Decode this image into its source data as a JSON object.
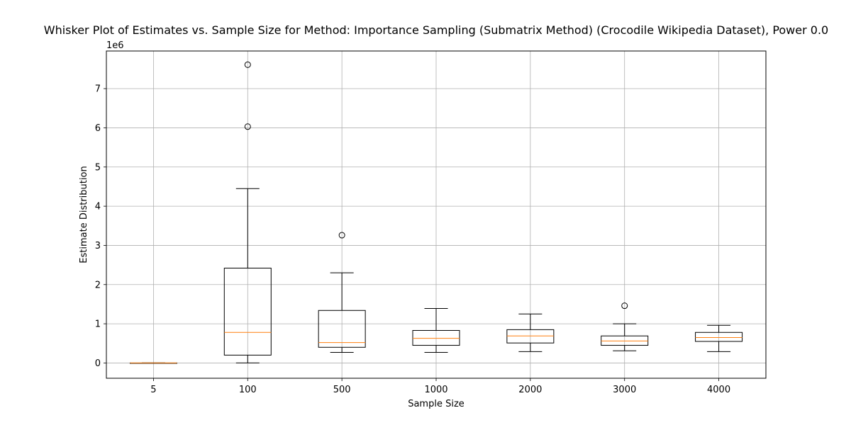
{
  "chart_data": {
    "type": "box",
    "title": "Whisker Plot of Estimates vs. Sample Size for Method: Importance Sampling (Submatrix Method) (Crocodile Wikipedia Dataset), Power 0.0",
    "xlabel": "Sample Size",
    "ylabel": "Estimate Distribution",
    "y_offset_label": "1e6",
    "y_scale_factor": 1000000,
    "ylim": [
      -390000,
      7960000
    ],
    "yticks": [
      0,
      1000000,
      2000000,
      3000000,
      4000000,
      5000000,
      6000000,
      7000000
    ],
    "ytick_labels": [
      "0",
      "1",
      "2",
      "3",
      "4",
      "5",
      "6",
      "7"
    ],
    "grid": true,
    "categories": [
      "5",
      "100",
      "500",
      "1000",
      "2000",
      "3000",
      "4000"
    ],
    "boxes": [
      {
        "category": "5",
        "whisker_low": 0,
        "q1": 0,
        "median": 0,
        "q3": 0,
        "whisker_high": 0,
        "outliers": []
      },
      {
        "category": "100",
        "whisker_low": 0,
        "q1": 200000,
        "median": 780000,
        "q3": 2420000,
        "whisker_high": 4450000,
        "outliers": [
          6030000,
          7610000
        ]
      },
      {
        "category": "500",
        "whisker_low": 270000,
        "q1": 400000,
        "median": 520000,
        "q3": 1340000,
        "whisker_high": 2300000,
        "outliers": [
          3260000
        ]
      },
      {
        "category": "1000",
        "whisker_low": 270000,
        "q1": 450000,
        "median": 630000,
        "q3": 830000,
        "whisker_high": 1390000,
        "outliers": []
      },
      {
        "category": "2000",
        "whisker_low": 290000,
        "q1": 510000,
        "median": 690000,
        "q3": 850000,
        "whisker_high": 1250000,
        "outliers": []
      },
      {
        "category": "3000",
        "whisker_low": 310000,
        "q1": 450000,
        "median": 560000,
        "q3": 690000,
        "whisker_high": 1000000,
        "outliers": [
          1460000
        ]
      },
      {
        "category": "4000",
        "whisker_low": 290000,
        "q1": 550000,
        "median": 650000,
        "q3": 780000,
        "whisker_high": 960000,
        "outliers": []
      }
    ],
    "colors": {
      "box": "#000000",
      "median": "#ff7f0e",
      "grid": "#b0b0b0"
    }
  }
}
